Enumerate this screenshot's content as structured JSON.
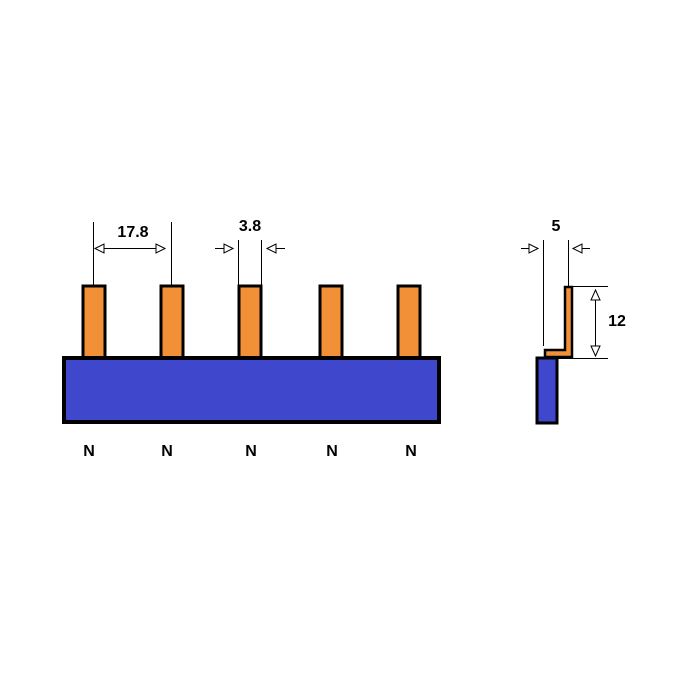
{
  "front_view": {
    "pitch_label": "17.8",
    "pin_width_label": "3.8",
    "pins": [
      {
        "label": "N"
      },
      {
        "label": "N"
      },
      {
        "label": "N"
      },
      {
        "label": "N"
      },
      {
        "label": "N"
      }
    ]
  },
  "side_view": {
    "width_label": "5",
    "height_label": "12"
  }
}
